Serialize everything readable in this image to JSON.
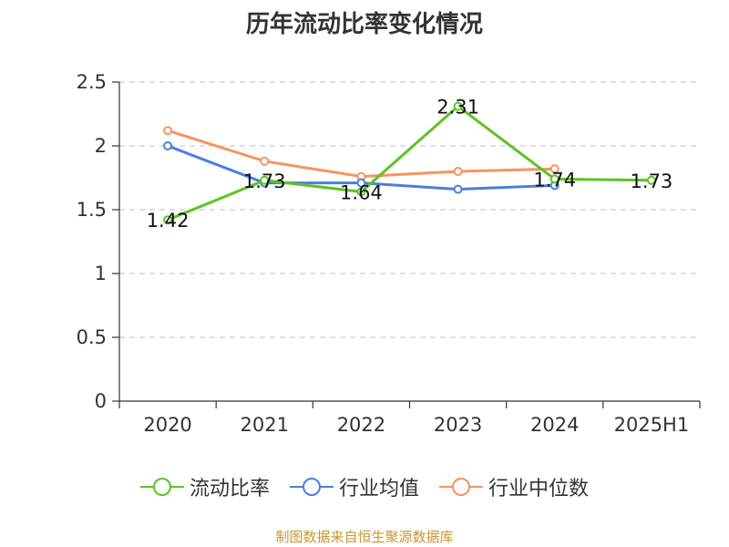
{
  "chart_data": {
    "type": "line",
    "title": "历年流动比率变化情况",
    "categories": [
      "2020",
      "2021",
      "2022",
      "2023",
      "2024",
      "2025H1"
    ],
    "ylim": [
      0,
      2.5
    ],
    "yticks": [
      "0",
      "0.5",
      "1",
      "1.5",
      "2",
      "2.5"
    ],
    "grid": true,
    "legend_position": "bottom",
    "series": [
      {
        "name": "流动比率",
        "color": "#5ec224",
        "values": [
          1.42,
          1.73,
          1.64,
          2.31,
          1.74,
          1.73
        ],
        "labels": [
          "1.42",
          "1.73",
          "1.64",
          "2.31",
          "1.74",
          "1.73"
        ]
      },
      {
        "name": "行业均值",
        "color": "#4a7ede",
        "values": [
          2.0,
          1.71,
          1.71,
          1.66,
          1.69,
          null
        ]
      },
      {
        "name": "行业中位数",
        "color": "#f59462",
        "values": [
          2.12,
          1.88,
          1.76,
          1.8,
          1.82,
          null
        ]
      }
    ]
  },
  "source_text": "制图数据来自恒生聚源数据库"
}
